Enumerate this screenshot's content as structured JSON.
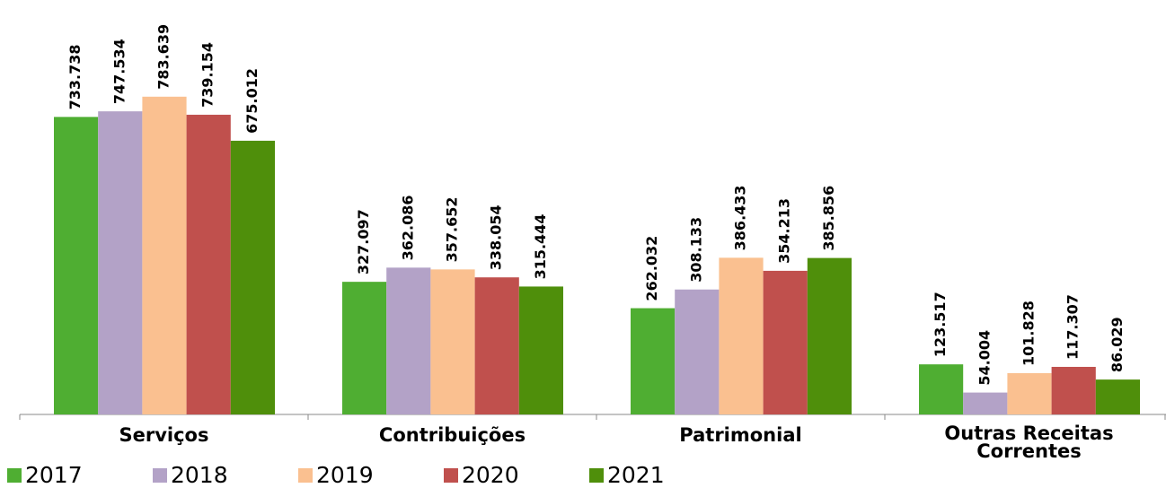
{
  "chart_data": {
    "type": "bar",
    "categories": [
      "Serviços",
      "Contribuições",
      "Patrimonial",
      "Outras Receitas Correntes"
    ],
    "series": [
      {
        "name": "2017",
        "color": "#4fae32",
        "values": [
          733738,
          327097,
          262032,
          123517
        ],
        "value_labels": [
          "733.738",
          "327.097",
          "262.032",
          "123.517"
        ]
      },
      {
        "name": "2018",
        "color": "#b3a2c7",
        "values": [
          747534,
          362086,
          308133,
          54004
        ],
        "value_labels": [
          "747.534",
          "362.086",
          "308.133",
          "54.004"
        ]
      },
      {
        "name": "2019",
        "color": "#fac090",
        "values": [
          783639,
          357652,
          386433,
          101828
        ],
        "value_labels": [
          "783.639",
          "357.652",
          "386.433",
          "101.828"
        ]
      },
      {
        "name": "2020",
        "color": "#c0504d",
        "values": [
          739154,
          338054,
          354213,
          117307
        ],
        "value_labels": [
          "739.154",
          "338.054",
          "354.213",
          "117.307"
        ]
      },
      {
        "name": "2021",
        "color": "#4f8f0b",
        "values": [
          675012,
          315444,
          385856,
          86029
        ],
        "value_labels": [
          "675.012",
          "315.444",
          "385.856",
          "86.029"
        ]
      }
    ],
    "ylim": [
      0,
      1000000
    ],
    "legend": "bottom"
  }
}
